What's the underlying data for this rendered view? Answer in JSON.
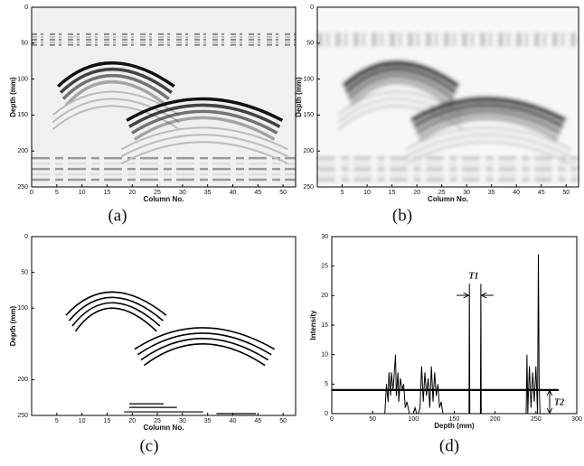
{
  "chart_data": [
    {
      "type": "image",
      "caption": "(a)",
      "x_label": "Column No.",
      "y_label": "Depth (mm)",
      "xlim": [
        0,
        52.5
      ],
      "xticks": [
        0,
        5,
        10,
        15,
        20,
        25,
        30,
        35,
        40,
        45,
        50
      ],
      "ylim": [
        0,
        250
      ],
      "yticks": [
        0,
        50,
        100,
        150,
        200,
        250
      ]
    },
    {
      "type": "image",
      "caption": "(b)",
      "x_label": "Column No.",
      "y_label": "Depth (mm)",
      "xlim": [
        0,
        52.5
      ],
      "xticks": [
        5,
        10,
        15,
        20,
        25,
        30,
        35,
        40,
        45,
        50
      ],
      "ylim": [
        0,
        250
      ],
      "yticks": [
        0,
        50,
        100,
        150,
        200,
        250
      ]
    },
    {
      "type": "image",
      "caption": "(c)",
      "x_label": "Column No.",
      "y_label": "Depth (mm)",
      "xlim": [
        0,
        52.5
      ],
      "xticks": [
        5,
        10,
        15,
        20,
        25,
        30,
        35,
        40,
        45,
        50
      ],
      "ylim": [
        0,
        250
      ],
      "yticks": [
        0,
        50,
        100,
        200,
        250
      ]
    },
    {
      "type": "line",
      "caption": "(d)",
      "x_label": "Depth (mm)",
      "y_label": "Intensity",
      "xlim": [
        0,
        300
      ],
      "xticks": [
        0,
        50,
        100,
        150,
        200,
        250,
        300
      ],
      "ylim": [
        0,
        30
      ],
      "yticks": [
        0,
        5,
        10,
        15,
        20,
        25,
        30
      ],
      "x": [
        0,
        65,
        67,
        69,
        70,
        72,
        73,
        75,
        76,
        78,
        79,
        81,
        82,
        84,
        86,
        88,
        90,
        92,
        95,
        100,
        102,
        104,
        106,
        108,
        110,
        112,
        114,
        116,
        118,
        120,
        122,
        124,
        126,
        128,
        130,
        132,
        134,
        136,
        138,
        140,
        142,
        145,
        168,
        168.5,
        169,
        182,
        182.5,
        183,
        236,
        238,
        239,
        240,
        242,
        244,
        246,
        248,
        250,
        252,
        253,
        254,
        255,
        258,
        260
      ],
      "series": [
        {
          "color": "#000000",
          "values": [
            0,
            0,
            5,
            2,
            7,
            3,
            7,
            4,
            6,
            10,
            3,
            7,
            2,
            6,
            4,
            5,
            1,
            2,
            0,
            0,
            1,
            0,
            0,
            1,
            8,
            2,
            7,
            3,
            6,
            1,
            8,
            2,
            7,
            3,
            5,
            1,
            2,
            0,
            0,
            0,
            0,
            0,
            0,
            22,
            0,
            0,
            22,
            0,
            0,
            0,
            10,
            0,
            8,
            1,
            7,
            2,
            8,
            0,
            27,
            5,
            0,
            0,
            0
          ]
        }
      ],
      "threshold": {
        "value": 4,
        "x": [
          0,
          278
        ]
      },
      "annotations": [
        "T1",
        "T2"
      ]
    }
  ]
}
